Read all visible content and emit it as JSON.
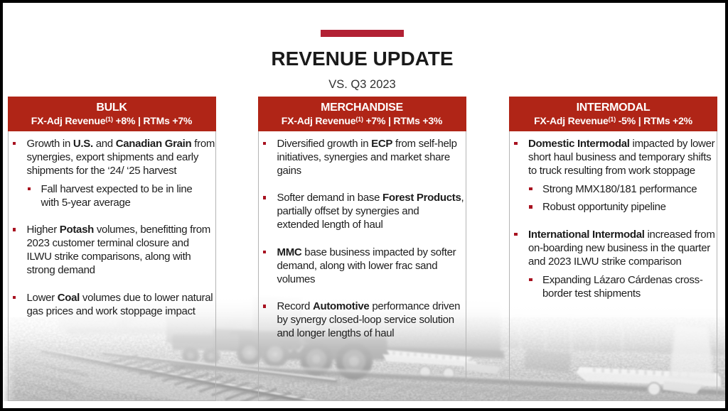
{
  "title": "REVENUE UPDATE",
  "subtitle": "VS. Q3 2023",
  "colors": {
    "accent_bar": "#b22134",
    "column_header": "#b02517",
    "bullet_square": "#a81220",
    "text": "#1d1d1d"
  },
  "columns": [
    {
      "name": "BULK",
      "stats": {
        "label": "FX-Adj Revenue",
        "sup": "(1)",
        "rest": " +8% | RTMs +7%"
      },
      "bullets": [
        {
          "level": 1,
          "lines": [
            [
              {
                "t": "Growth in ",
                "b": 0
              },
              {
                "t": "U.S.",
                "b": 1
              },
              {
                "t": " and ",
                "b": 0
              },
              {
                "t": "Canadian Grain",
                "b": 1
              },
              {
                "t": " from",
                "b": 0
              }
            ],
            [
              {
                "t": "synergies, export shipments and early",
                "b": 0
              }
            ],
            [
              {
                "t": "shipments for the ‘24/ ‘25 harvest",
                "b": 0
              }
            ]
          ]
        },
        {
          "level": 2,
          "lines": [
            [
              {
                "t": "Fall harvest expected to be in line",
                "b": 0
              }
            ],
            [
              {
                "t": "with 5-year average",
                "b": 0
              }
            ]
          ]
        },
        {
          "level": 1,
          "lines": [
            [
              {
                "t": "Higher ",
                "b": 0
              },
              {
                "t": "Potash",
                "b": 1
              },
              {
                "t": " volumes, benefitting from",
                "b": 0
              }
            ],
            [
              {
                "t": "2023 customer terminal closure and",
                "b": 0
              }
            ],
            [
              {
                "t": "ILWU strike comparisons, along with",
                "b": 0
              }
            ],
            [
              {
                "t": "strong demand",
                "b": 0
              }
            ]
          ]
        },
        {
          "level": 1,
          "lines": [
            [
              {
                "t": "Lower ",
                "b": 0
              },
              {
                "t": "Coal",
                "b": 1
              },
              {
                "t": " volumes due to lower natural",
                "b": 0
              }
            ],
            [
              {
                "t": "gas prices and work stoppage impact",
                "b": 0
              }
            ]
          ]
        }
      ]
    },
    {
      "name": "MERCHANDISE",
      "stats": {
        "label": "FX-Adj Revenue",
        "sup": "(1)",
        "rest": " +7% | RTMs +3%"
      },
      "bullets": [
        {
          "level": 1,
          "lines": [
            [
              {
                "t": "Diversified growth in ",
                "b": 0
              },
              {
                "t": "ECP",
                "b": 1
              },
              {
                "t": " from self-help",
                "b": 0
              }
            ],
            [
              {
                "t": "initiatives, synergies and market share",
                "b": 0
              }
            ],
            [
              {
                "t": "gains",
                "b": 0
              }
            ]
          ]
        },
        {
          "level": 1,
          "lines": [
            [
              {
                "t": "Softer demand in base ",
                "b": 0
              },
              {
                "t": "Forest Products",
                "b": 1
              },
              {
                "t": ",",
                "b": 0
              }
            ],
            [
              {
                "t": "partially offset by synergies and",
                "b": 0
              }
            ],
            [
              {
                "t": "extended length of haul",
                "b": 0
              }
            ]
          ]
        },
        {
          "level": 1,
          "lines": [
            [
              {
                "t": "MMC",
                "b": 1
              },
              {
                "t": " base business impacted by softer",
                "b": 0
              }
            ],
            [
              {
                "t": "demand, along with lower frac sand",
                "b": 0
              }
            ],
            [
              {
                "t": "volumes",
                "b": 0
              }
            ]
          ]
        },
        {
          "level": 1,
          "lines": [
            [
              {
                "t": "Record ",
                "b": 0
              },
              {
                "t": "Automotive",
                "b": 1
              },
              {
                "t": " performance driven",
                "b": 0
              }
            ],
            [
              {
                "t": "by synergy closed-loop service solution",
                "b": 0
              }
            ],
            [
              {
                "t": "and longer lengths of haul",
                "b": 0
              }
            ]
          ]
        }
      ]
    },
    {
      "name": "INTERMODAL",
      "stats": {
        "label": "FX-Adj Revenue",
        "sup": "(1)",
        "rest": " -5% | RTMs +2%"
      },
      "bullets": [
        {
          "level": 1,
          "lines": [
            [
              {
                "t": "Domestic Intermodal",
                "b": 1
              },
              {
                "t": " impacted by lower",
                "b": 0
              }
            ],
            [
              {
                "t": "short haul business and temporary shifts",
                "b": 0
              }
            ],
            [
              {
                "t": "to truck resulting from work stoppage",
                "b": 0
              }
            ]
          ]
        },
        {
          "level": 2,
          "lines": [
            [
              {
                "t": "Strong MMX180/181 performance",
                "b": 0
              }
            ]
          ]
        },
        {
          "level": 2,
          "lines": [
            [
              {
                "t": "Robust opportunity pipeline",
                "b": 0
              }
            ]
          ]
        },
        {
          "level": 1,
          "lines": [
            [
              {
                "t": "International Intermodal",
                "b": 1
              },
              {
                "t": " increased from",
                "b": 0
              }
            ],
            [
              {
                "t": "on-boarding new business in the quarter",
                "b": 0
              }
            ],
            [
              {
                "t": "and 2023 ILWU strike comparison",
                "b": 0
              }
            ]
          ]
        },
        {
          "level": 2,
          "lines": [
            [
              {
                "t": "Expanding Lázaro Cárdenas cross-",
                "b": 0
              }
            ],
            [
              {
                "t": "border test shipments",
                "b": 0
              }
            ]
          ]
        }
      ]
    }
  ]
}
